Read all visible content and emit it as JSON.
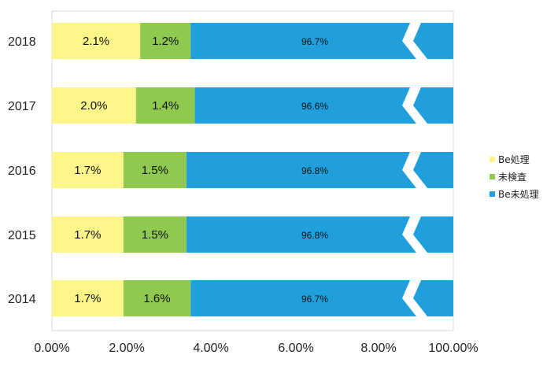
{
  "chart_data": {
    "type": "bar",
    "orientation": "horizontal",
    "stacked": true,
    "axis_break": true,
    "categories": [
      "2018",
      "2017",
      "2016",
      "2015",
      "2014"
    ],
    "series": [
      {
        "name": "Be処理",
        "color": "#fbf58a",
        "values": [
          2.1,
          2.0,
          1.7,
          1.7,
          1.7
        ],
        "labels": [
          "2.1%",
          "2.0%",
          "1.7%",
          "1.7%",
          "1.7%"
        ]
      },
      {
        "name": "未検査",
        "color": "#8fc950",
        "values": [
          1.2,
          1.4,
          1.5,
          1.5,
          1.6
        ],
        "labels": [
          "1.2%",
          "1.4%",
          "1.5%",
          "1.5%",
          "1.6%"
        ]
      },
      {
        "name": "Be未処理",
        "color": "#1fa0dc",
        "values": [
          96.7,
          96.6,
          96.8,
          96.8,
          96.7
        ],
        "labels": [
          "96.7%",
          "96.6%",
          "96.8%",
          "96.8%",
          "96.7%"
        ]
      }
    ],
    "xticks": [
      "0.00%",
      "2.00%",
      "4.00%",
      "6.00%",
      "8.00%",
      "100.00%"
    ],
    "xlim": [
      0,
      10
    ],
    "legend_position": "right",
    "grid": false
  }
}
